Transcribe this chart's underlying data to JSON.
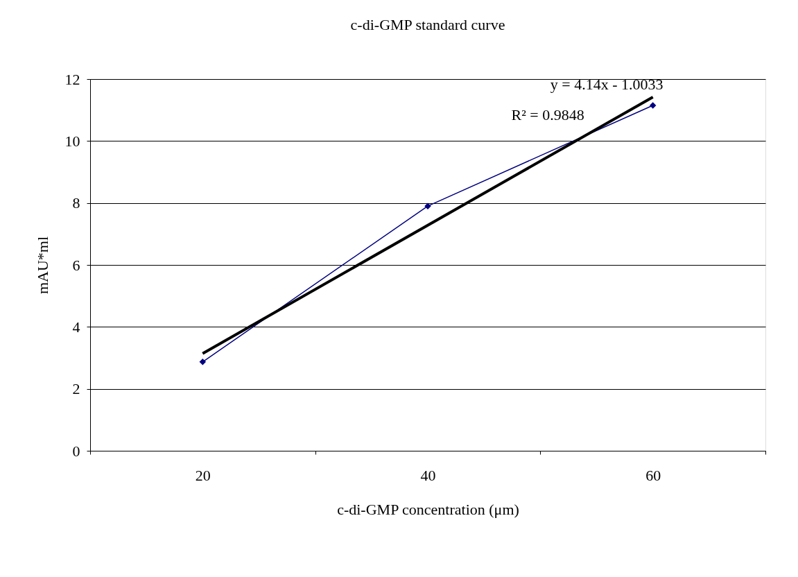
{
  "chart_data": {
    "type": "line",
    "title": "c-di-GMP standard curve",
    "xlabel": "c-di-GMP concentration (μm)",
    "ylabel": "mAU*ml",
    "categories": [
      "20",
      "40",
      "60"
    ],
    "series": [
      {
        "color": "#000080",
        "values": [
          2.87,
          7.9,
          11.15
        ],
        "marker": "diamond"
      },
      {
        "type": "line",
        "x": [
          "20",
          "60"
        ],
        "color": "#000000",
        "values": [
          3.14,
          11.42
        ],
        "marker": "none"
      }
    ],
    "ylim": [
      0,
      12
    ],
    "yticks": [
      0,
      2,
      4,
      6,
      8,
      10,
      12
    ],
    "grid": "y",
    "annotations": [
      "y = 4.14x - 1.0033",
      "R² = 0.9848"
    ]
  }
}
